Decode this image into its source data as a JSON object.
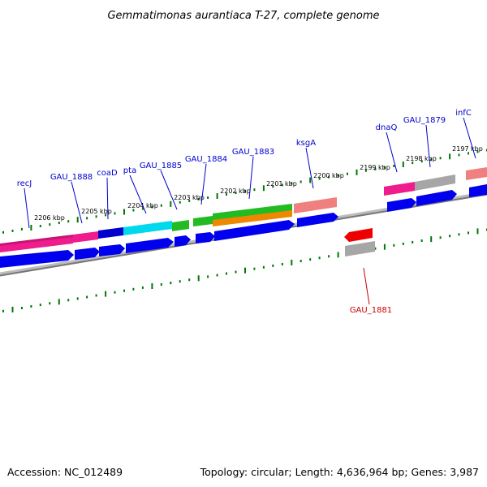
{
  "title": "Gemmatimonas aurantiaca T-27, complete genome",
  "footer": {
    "accession": "Accession: NC_012489",
    "summary": "Topology: circular; Length: 4,636,964 bp; Genes: 3,987"
  },
  "colors": {
    "cds": "#0000ee",
    "magenta": "#ee1c8c",
    "cyan": "#00eeee",
    "green": "#22bb22",
    "orange": "#ee8800",
    "salmon": "#f08080",
    "gray": "#a6a6a6",
    "red": "#ee0000",
    "tick": "#007700",
    "backbone": "#777777",
    "label_fwd": "#0000cc",
    "label_rev": "#cc0000"
  },
  "kbp_labels": [
    "2206 kbp",
    "2205 kbp",
    "2204 kbp",
    "2203 kbp",
    "2202 kbp",
    "2201 kbp",
    "2200 kbp",
    "2199 kbp",
    "2198 kbp",
    "2197 kbp"
  ],
  "gene_labels": [
    {
      "name": "recJ",
      "strand": "forward"
    },
    {
      "name": "GAU_1888",
      "strand": "forward"
    },
    {
      "name": "coaD",
      "strand": "forward"
    },
    {
      "name": "pta",
      "strand": "forward"
    },
    {
      "name": "GAU_1885",
      "strand": "forward"
    },
    {
      "name": "GAU_1884",
      "strand": "forward"
    },
    {
      "name": "GAU_1883",
      "strand": "forward"
    },
    {
      "name": "ksgA",
      "strand": "forward"
    },
    {
      "name": "dnaQ",
      "strand": "forward"
    },
    {
      "name": "GAU_1879",
      "strand": "forward"
    },
    {
      "name": "infC",
      "strand": "forward"
    },
    {
      "name": "GAU_1881",
      "strand": "reverse"
    }
  ]
}
